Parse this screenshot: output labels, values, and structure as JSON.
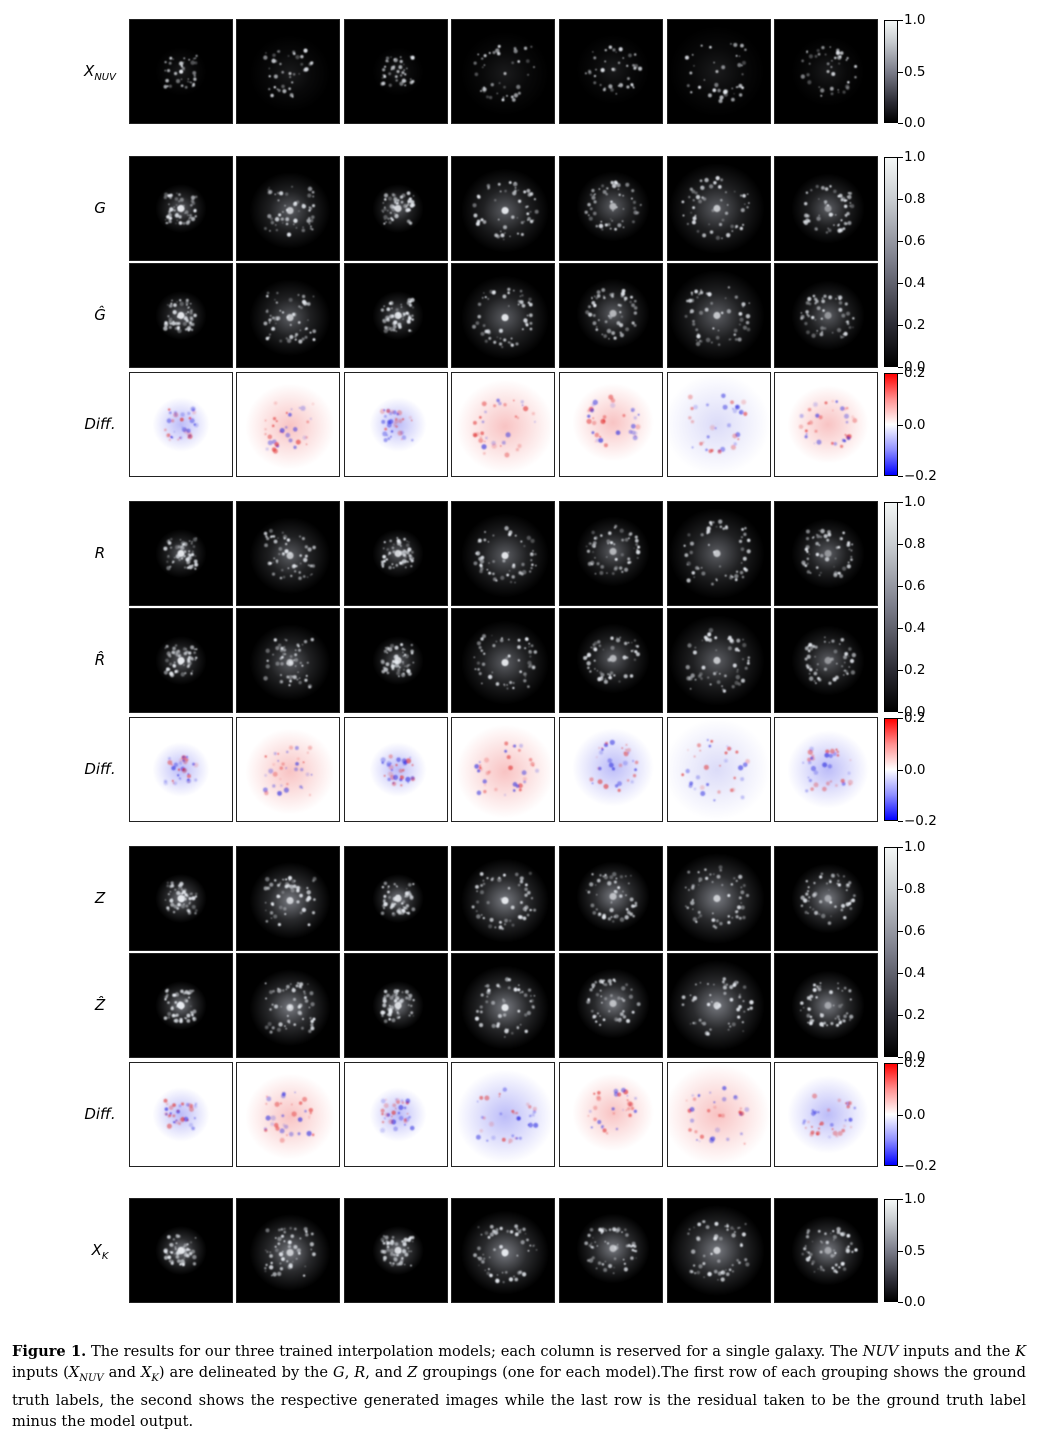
{
  "figure": {
    "rows": [
      {
        "label": "X_NUV",
        "display": "XNUV",
        "kind": "nuv",
        "group": 0
      },
      {
        "label": "G",
        "display": "G",
        "kind": "truth",
        "group": 1
      },
      {
        "label": "Ĝ",
        "display": "Ĝ",
        "kind": "pred",
        "group": 1
      },
      {
        "label": "Diff.",
        "display": "Diff.",
        "kind": "diff",
        "group": 1
      },
      {
        "label": "R",
        "display": "R",
        "kind": "truth",
        "group": 2
      },
      {
        "label": "R̂",
        "display": "R̂",
        "kind": "pred",
        "group": 2
      },
      {
        "label": "Diff.",
        "display": "Diff.",
        "kind": "diff",
        "group": 2
      },
      {
        "label": "Z",
        "display": "Z",
        "kind": "truth",
        "group": 3
      },
      {
        "label": "Ẑ",
        "display": "Ẑ",
        "kind": "pred",
        "group": 3
      },
      {
        "label": "Diff.",
        "display": "Diff.",
        "kind": "diff",
        "group": 3
      },
      {
        "label": "X_K",
        "display": "XK",
        "kind": "k",
        "group": 4
      }
    ],
    "colorbars": [
      {
        "type": "gray",
        "ticks": [
          "1.0",
          "0.5",
          "0.0"
        ]
      },
      {
        "type": "gray",
        "ticks": [
          "1.0",
          "0.8",
          "0.6",
          "0.4",
          "0.2",
          "0.0"
        ]
      },
      {
        "type": "diverging",
        "ticks": [
          "0.2",
          "0.0",
          "−0.2"
        ]
      },
      {
        "type": "gray",
        "ticks": [
          "1.0",
          "0.8",
          "0.6",
          "0.4",
          "0.2",
          "0.0"
        ]
      },
      {
        "type": "diverging",
        "ticks": [
          "0.2",
          "0.0",
          "−0.2"
        ]
      },
      {
        "type": "gray",
        "ticks": [
          "1.0",
          "0.8",
          "0.6",
          "0.4",
          "0.2",
          "0.0"
        ]
      },
      {
        "type": "diverging",
        "ticks": [
          "0.2",
          "0.0",
          "−0.2"
        ]
      },
      {
        "type": "gray",
        "ticks": [
          "1.0",
          "0.5",
          "0.0"
        ]
      }
    ]
  },
  "caption": {
    "label": "Figure 1.",
    "text": "The results for our three trained interpolation models; each column is reserved for a single galaxy. The NUV inputs and the K inputs (X_NUV and X_K) are delineated by the G, R, and Z groupings (one for each model).The first row of each grouping shows the ground truth labels, the second shows the respective generated images while the last row is the residual taken to be the ground truth label minus the model output."
  }
}
